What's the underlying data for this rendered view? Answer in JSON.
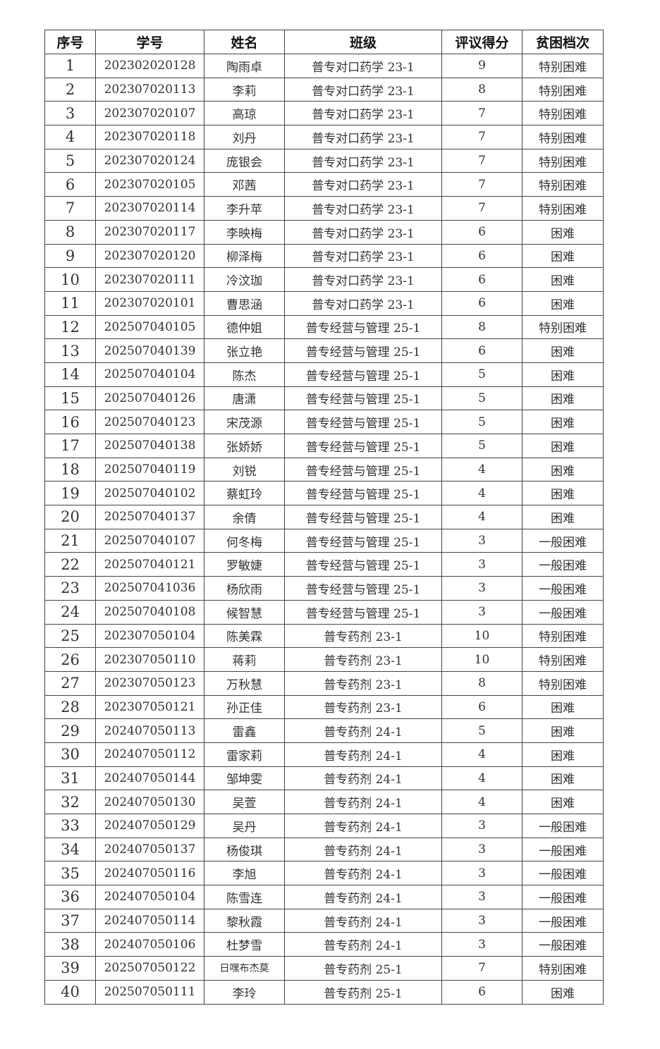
{
  "table": {
    "headers": [
      "序号",
      "学号",
      "姓名",
      "班级",
      "评议得分",
      "贫困档次"
    ],
    "rows": [
      [
        "1",
        "202302020128",
        "陶雨卓",
        "普专对口药学 23-1",
        "9",
        "特别困难"
      ],
      [
        "2",
        "202307020113",
        "李莉",
        "普专对口药学 23-1",
        "8",
        "特别困难"
      ],
      [
        "3",
        "202307020107",
        "高琼",
        "普专对口药学 23-1",
        "7",
        "特别困难"
      ],
      [
        "4",
        "202307020118",
        "刘丹",
        "普专对口药学 23-1",
        "7",
        "特别困难"
      ],
      [
        "5",
        "202307020124",
        "庞银会",
        "普专对口药学 23-1",
        "7",
        "特别困难"
      ],
      [
        "6",
        "202307020105",
        "邓茜",
        "普专对口药学 23-1",
        "7",
        "特别困难"
      ],
      [
        "7",
        "202307020114",
        "李升苹",
        "普专对口药学 23-1",
        "7",
        "特别困难"
      ],
      [
        "8",
        "202307020117",
        "李映梅",
        "普专对口药学 23-1",
        "6",
        "困难"
      ],
      [
        "9",
        "202307020120",
        "柳泽梅",
        "普专对口药学 23-1",
        "6",
        "困难"
      ],
      [
        "10",
        "202307020111",
        "冷汶珈",
        "普专对口药学 23-1",
        "6",
        "困难"
      ],
      [
        "11",
        "202307020101",
        "曹思涵",
        "普专对口药学 23-1",
        "6",
        "困难"
      ],
      [
        "12",
        "202507040105",
        "德仲姐",
        "普专经营与管理 25-1",
        "8",
        "特别困难"
      ],
      [
        "13",
        "202507040139",
        "张立艳",
        "普专经营与管理 25-1",
        "6",
        "困难"
      ],
      [
        "14",
        "202507040104",
        "陈杰",
        "普专经营与管理 25-1",
        "5",
        "困难"
      ],
      [
        "15",
        "202507040126",
        "唐潇",
        "普专经营与管理 25-1",
        "5",
        "困难"
      ],
      [
        "16",
        "202507040123",
        "宋茂源",
        "普专经营与管理 25-1",
        "5",
        "困难"
      ],
      [
        "17",
        "202507040138",
        "张娇娇",
        "普专经营与管理 25-1",
        "5",
        "困难"
      ],
      [
        "18",
        "202507040119",
        "刘锐",
        "普专经营与管理 25-1",
        "4",
        "困难"
      ],
      [
        "19",
        "202507040102",
        "蔡虹玲",
        "普专经营与管理 25-1",
        "4",
        "困难"
      ],
      [
        "20",
        "202507040137",
        "余倩",
        "普专经营与管理 25-1",
        "4",
        "困难"
      ],
      [
        "21",
        "202507040107",
        "何冬梅",
        "普专经营与管理 25-1",
        "3",
        "一般困难"
      ],
      [
        "22",
        "202507040121",
        "罗敏婕",
        "普专经营与管理 25-1",
        "3",
        "一般困难"
      ],
      [
        "23",
        "202507041036",
        "杨欣雨",
        "普专经营与管理 25-1",
        "3",
        "一般困难"
      ],
      [
        "24",
        "202507040108",
        "候智慧",
        "普专经营与管理 25-1",
        "3",
        "一般困难"
      ],
      [
        "25",
        "202307050104",
        "陈美霖",
        "普专药剂 23-1",
        "10",
        "特别困难"
      ],
      [
        "26",
        "202307050110",
        "蒋莉",
        "普专药剂 23-1",
        "10",
        "特别困难"
      ],
      [
        "27",
        "202307050123",
        "万秋慧",
        "普专药剂 23-1",
        "8",
        "特别困难"
      ],
      [
        "28",
        "202307050121",
        "孙正佳",
        "普专药剂 23-1",
        "6",
        "困难"
      ],
      [
        "29",
        "202407050113",
        "雷鑫",
        "普专药剂 24-1",
        "5",
        "困难"
      ],
      [
        "30",
        "202407050112",
        "雷家莉",
        "普专药剂 24-1",
        "4",
        "困难"
      ],
      [
        "31",
        "202407050144",
        "邹坤雯",
        "普专药剂 24-1",
        "4",
        "困难"
      ],
      [
        "32",
        "202407050130",
        "吴萱",
        "普专药剂 24-1",
        "4",
        "困难"
      ],
      [
        "33",
        "202407050129",
        "吴丹",
        "普专药剂 24-1",
        "3",
        "一般困难"
      ],
      [
        "34",
        "202407050137",
        "杨俊琪",
        "普专药剂 24-1",
        "3",
        "一般困难"
      ],
      [
        "35",
        "202407050116",
        "李旭",
        "普专药剂 24-1",
        "3",
        "一般困难"
      ],
      [
        "36",
        "202407050104",
        "陈雪连",
        "普专药剂 24-1",
        "3",
        "一般困难"
      ],
      [
        "37",
        "202407050114",
        "黎秋霞",
        "普专药剂 24-1",
        "3",
        "一般困难"
      ],
      [
        "38",
        "202407050106",
        "杜梦雪",
        "普专药剂 24-1",
        "3",
        "一般困难"
      ],
      [
        "39",
        "202507050122",
        "日嘿布杰莫",
        "普专药剂 25-1",
        "7",
        "特别困难"
      ],
      [
        "40",
        "202507050111",
        "李玲",
        "普专药剂 25-1",
        "6",
        "困难"
      ]
    ]
  }
}
